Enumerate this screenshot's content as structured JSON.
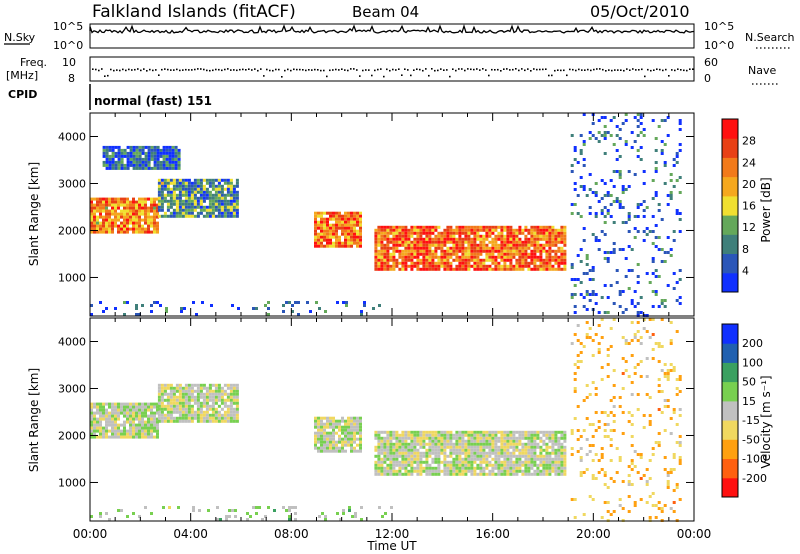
{
  "header": {
    "title": "Falkland Islands (fitACF)",
    "beam": "Beam 04",
    "date": "05/Oct/2010"
  },
  "strips": {
    "nsky_label": "N.Sky",
    "nsearch_label": "N.Search",
    "freq_label_1": "Freq.",
    "freq_label_2": "[MHz]",
    "nave_label": "Nave",
    "cpid_label": "CPID",
    "cpid_value": "normal (fast) 151",
    "nsky_ticks": [
      "10^5",
      "10^0"
    ],
    "nsearch_ticks": [
      "10^5",
      "10^0"
    ],
    "freq_ticks": [
      "10",
      "8"
    ],
    "nave_ticks": [
      "60",
      "0"
    ]
  },
  "colors": {
    "power_scale": [
      "#1030ff",
      "#2b56b8",
      "#3f7f7a",
      "#64a85a",
      "#f0e030",
      "#f5a81e",
      "#f27a1a",
      "#e84015",
      "#ff1010"
    ],
    "velocity_scale": [
      "#ff1010",
      "#ff6010",
      "#ffa010",
      "#f0d860",
      "#c0c0c0",
      "#78d050",
      "#3aa060",
      "#2060b0",
      "#1030ff"
    ]
  },
  "chart_data": [
    {
      "type": "heatmap",
      "name_ref": "power",
      "ylabel": "Slant Range [km]",
      "xlabel": "",
      "colorbar_label": "Power [dB]",
      "colorbar_ticks": [
        "4",
        "8",
        "12",
        "16",
        "20",
        "24",
        "28"
      ],
      "colorbar_range": [
        0,
        32
      ],
      "xlim": [
        0,
        24
      ],
      "ylim": [
        180,
        4500
      ],
      "yticks": [
        "1000",
        "2000",
        "3000",
        "4000"
      ],
      "regions": [
        {
          "t0": 0.0,
          "t1": 2.7,
          "r0": 1950,
          "r1": 2700,
          "level": 22
        },
        {
          "t0": 2.7,
          "t1": 5.8,
          "r0": 2300,
          "r1": 3100,
          "level": 10
        },
        {
          "t0": 0.5,
          "t1": 3.5,
          "r0": 3300,
          "r1": 3800,
          "level": 6
        },
        {
          "t0": 8.9,
          "t1": 10.8,
          "r0": 1650,
          "r1": 2400,
          "level": 24
        },
        {
          "t0": 11.3,
          "t1": 18.9,
          "r0": 1200,
          "r1": 2100,
          "level": 24
        },
        {
          "t0": 19.1,
          "t1": 23.5,
          "r0": 200,
          "r1": 4500,
          "level": 5
        },
        {
          "t0": 0.0,
          "t1": 12.0,
          "r0": 200,
          "r1": 500,
          "level": 5
        }
      ]
    },
    {
      "type": "heatmap",
      "name_ref": "velocity",
      "ylabel": "Slant Range [km]",
      "xlabel": "Time UT",
      "colorbar_label": "Velocity [m s⁻¹]",
      "colorbar_ticks": [
        "-200",
        "-100",
        "-50",
        "-15",
        "15",
        "50",
        "100",
        "200"
      ],
      "colorbar_range": [
        -250,
        250
      ],
      "xlim": [
        0,
        24
      ],
      "ylim": [
        180,
        4500
      ],
      "yticks": [
        "1000",
        "2000",
        "3000",
        "4000"
      ],
      "xticks": [
        "00:00",
        "04:00",
        "08:00",
        "12:00",
        "16:00",
        "20:00",
        "00:00"
      ],
      "regions": [
        {
          "t0": 0.0,
          "t1": 2.7,
          "r0": 1950,
          "r1": 2700,
          "level": 0
        },
        {
          "t0": 2.7,
          "t1": 5.8,
          "r0": 2300,
          "r1": 3100,
          "level": 0
        },
        {
          "t0": 8.9,
          "t1": 10.8,
          "r0": 1650,
          "r1": 2400,
          "level": 5
        },
        {
          "t0": 11.3,
          "t1": 18.9,
          "r0": 1200,
          "r1": 2100,
          "level": 0
        },
        {
          "t0": 19.1,
          "t1": 23.5,
          "r0": 200,
          "r1": 4500,
          "level": -80
        },
        {
          "t0": 0.0,
          "t1": 12.0,
          "r0": 200,
          "r1": 500,
          "level": 30
        }
      ]
    }
  ]
}
